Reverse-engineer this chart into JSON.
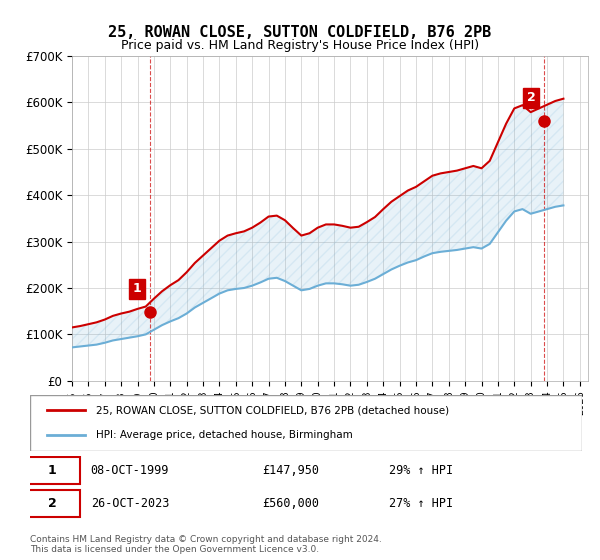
{
  "title": "25, ROWAN CLOSE, SUTTON COLDFIELD, B76 2PB",
  "subtitle": "Price paid vs. HM Land Registry's House Price Index (HPI)",
  "legend_line1": "25, ROWAN CLOSE, SUTTON COLDFIELD, B76 2PB (detached house)",
  "legend_line2": "HPI: Average price, detached house, Birmingham",
  "footer": "Contains HM Land Registry data © Crown copyright and database right 2024.\nThis data is licensed under the Open Government Licence v3.0.",
  "sale1_date": "08-OCT-1999",
  "sale1_price": 147950,
  "sale1_label": "1",
  "sale1_year": 1999.77,
  "sale2_date": "26-OCT-2023",
  "sale2_price": 560000,
  "sale2_label": "2",
  "sale2_year": 2023.82,
  "table_row1": "1    08-OCT-1999         £147,950        29% ↑ HPI",
  "table_row2": "2    26-OCT-2023         £560,000        27% ↑ HPI",
  "hpi_color": "#6baed6",
  "price_color": "#cc0000",
  "background_color": "#ffffff",
  "grid_color": "#cccccc",
  "ylim": [
    0,
    700000
  ],
  "xlim_start": 1995.0,
  "xlim_end": 2026.5,
  "hpi_data": {
    "years": [
      1995,
      1995.5,
      1996,
      1996.5,
      1997,
      1997.5,
      1998,
      1998.5,
      1999,
      1999.5,
      2000,
      2000.5,
      2001,
      2001.5,
      2002,
      2002.5,
      2003,
      2003.5,
      2004,
      2004.5,
      2005,
      2005.5,
      2006,
      2006.5,
      2007,
      2007.5,
      2008,
      2008.5,
      2009,
      2009.5,
      2010,
      2010.5,
      2011,
      2011.5,
      2012,
      2012.5,
      2013,
      2013.5,
      2014,
      2014.5,
      2015,
      2015.5,
      2016,
      2016.5,
      2017,
      2017.5,
      2018,
      2018.5,
      2019,
      2019.5,
      2020,
      2020.5,
      2021,
      2021.5,
      2022,
      2022.5,
      2023,
      2023.5,
      2024,
      2024.5,
      2025
    ],
    "values": [
      72000,
      74000,
      76000,
      78000,
      82000,
      87000,
      90000,
      93000,
      96000,
      100000,
      110000,
      120000,
      128000,
      135000,
      145000,
      158000,
      168000,
      178000,
      188000,
      195000,
      198000,
      200000,
      205000,
      212000,
      220000,
      222000,
      215000,
      205000,
      195000,
      198000,
      205000,
      210000,
      210000,
      208000,
      205000,
      207000,
      213000,
      220000,
      230000,
      240000,
      248000,
      255000,
      260000,
      268000,
      275000,
      278000,
      280000,
      282000,
      285000,
      288000,
      285000,
      295000,
      320000,
      345000,
      365000,
      370000,
      360000,
      365000,
      370000,
      375000,
      378000
    ]
  },
  "property_hpi_data": {
    "years": [
      1995,
      1995.5,
      1996,
      1996.5,
      1997,
      1997.5,
      1998,
      1998.5,
      1999,
      1999.5,
      2000,
      2000.5,
      2001,
      2001.5,
      2002,
      2002.5,
      2003,
      2003.5,
      2004,
      2004.5,
      2005,
      2005.5,
      2006,
      2006.5,
      2007,
      2007.5,
      2008,
      2008.5,
      2009,
      2009.5,
      2010,
      2010.5,
      2011,
      2011.5,
      2012,
      2012.5,
      2013,
      2013.5,
      2014,
      2014.5,
      2015,
      2015.5,
      2016,
      2016.5,
      2017,
      2017.5,
      2018,
      2018.5,
      2019,
      2019.5,
      2020,
      2020.5,
      2021,
      2021.5,
      2022,
      2022.5,
      2023,
      2023.5,
      2024,
      2024.5,
      2025
    ],
    "values": [
      115000,
      118000,
      122000,
      126000,
      132000,
      140000,
      145000,
      149000,
      155000,
      160000,
      177000,
      193000,
      206000,
      217000,
      234000,
      254000,
      270000,
      286000,
      302000,
      313000,
      318000,
      322000,
      330000,
      341000,
      354000,
      356000,
      346000,
      329000,
      313000,
      318000,
      330000,
      337000,
      337000,
      334000,
      330000,
      332000,
      342000,
      353000,
      370000,
      386000,
      398000,
      410000,
      418000,
      430000,
      442000,
      447000,
      450000,
      453000,
      458000,
      463000,
      458000,
      474000,
      514000,
      554000,
      587000,
      594000,
      579000,
      587000,
      595000,
      603000,
      608000
    ]
  }
}
